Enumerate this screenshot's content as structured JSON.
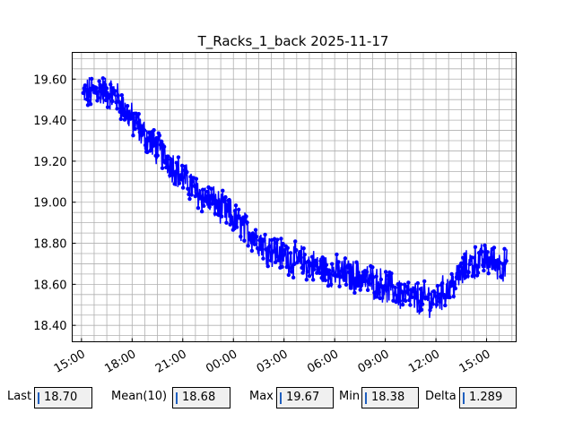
{
  "chart_data": {
    "type": "line",
    "title": "T_Racks_1_back 2025-11-17",
    "xlabel": "",
    "ylabel": "",
    "x_unit": "hours since 00:00 of 2025-11-17",
    "xlim": [
      14.45,
      16.75
    ],
    "ylim": [
      18.32,
      19.73
    ],
    "x_ticks": [
      15,
      18,
      21,
      24,
      27,
      30,
      33,
      36,
      39
    ],
    "x_tick_labels": [
      "15:00",
      "18:00",
      "21:00",
      "00:00",
      "03:00",
      "06:00",
      "09:00",
      "12:00",
      "15:00"
    ],
    "y_ticks": [
      18.4,
      18.6,
      18.8,
      19.0,
      19.2,
      19.4,
      19.6
    ],
    "y_tick_labels": [
      "18.40",
      "18.60",
      "18.80",
      "19.00",
      "19.20",
      "19.40",
      "19.60"
    ],
    "grid": true,
    "color": "#0000ff",
    "series": [
      {
        "name": "",
        "x_start": 15.1,
        "x_end": 39.2,
        "trend": [
          [
            15.1,
            19.52
          ],
          [
            16.0,
            19.55
          ],
          [
            17.0,
            19.52
          ],
          [
            18.0,
            19.4
          ],
          [
            19.0,
            19.3
          ],
          [
            20.0,
            19.22
          ],
          [
            21.0,
            19.12
          ],
          [
            22.0,
            19.04
          ],
          [
            23.0,
            18.99
          ],
          [
            24.0,
            18.92
          ],
          [
            25.0,
            18.85
          ],
          [
            26.0,
            18.78
          ],
          [
            27.0,
            18.74
          ],
          [
            28.0,
            18.71
          ],
          [
            29.0,
            18.68
          ],
          [
            30.0,
            18.66
          ],
          [
            31.0,
            18.64
          ],
          [
            32.0,
            18.62
          ],
          [
            33.0,
            18.59
          ],
          [
            34.0,
            18.55
          ],
          [
            35.0,
            18.53
          ],
          [
            36.0,
            18.53
          ],
          [
            37.0,
            18.6
          ],
          [
            38.0,
            18.7
          ],
          [
            39.0,
            18.72
          ],
          [
            40.0,
            18.69
          ]
        ],
        "noise_amplitude": 0.07,
        "points": 900
      }
    ]
  },
  "stats": {
    "last_label": "Last",
    "last_value": "18.70",
    "mean_label": "Mean(10)",
    "mean_value": "18.68",
    "max_label": "Max",
    "max_value": "19.67",
    "min_label": "Min",
    "min_value": "18.38",
    "delta_label": "Delta",
    "delta_value": "1.289"
  }
}
